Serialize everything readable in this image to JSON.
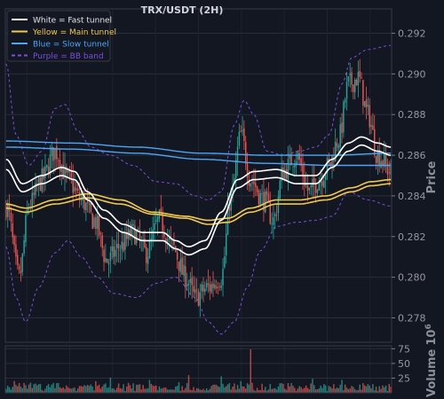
{
  "chart_data": {
    "type": "candlestick",
    "title": "TRX/USDT (2H)",
    "price_axis": {
      "label": "Price",
      "position": "right",
      "ylim": [
        0.2768,
        0.2932
      ],
      "ticks": [
        0.278,
        0.28,
        0.282,
        0.284,
        0.286,
        0.288,
        0.29,
        0.292
      ],
      "tick_labels": [
        "0.278",
        "0.280",
        "0.282",
        "0.284",
        "0.286",
        "0.288",
        "0.290",
        "0.292"
      ]
    },
    "volume_axis": {
      "label": "Volume",
      "multiplier": "10",
      "exponent": "6",
      "ylim": [
        0,
        80
      ],
      "ticks": [
        25,
        50,
        75
      ],
      "tick_labels": [
        "25",
        "50",
        "75"
      ]
    },
    "grid": true,
    "legend": {
      "placement": "top-left",
      "entries": [
        {
          "label": "White = Fast tunnel",
          "color": "#ffffff",
          "style": "solid"
        },
        {
          "label": "Yellow = Main tunnel",
          "color": "#f2c94c",
          "style": "solid"
        },
        {
          "label": "Blue = Slow tunnel",
          "color": "#4da6f5",
          "style": "solid"
        },
        {
          "label": "Purple = BB band",
          "color": "#7b4fe0",
          "style": "dashed"
        }
      ]
    },
    "colors": {
      "up": "#26a69a",
      "down": "#ef5350",
      "bb": "#7b4fe0",
      "fast": "#ffffff",
      "main": "#f2c94c",
      "slow": "#4da6f5"
    },
    "close_anchors": [
      [
        0,
        0.2835
      ],
      [
        8,
        0.28
      ],
      [
        14,
        0.2835
      ],
      [
        22,
        0.2848
      ],
      [
        30,
        0.2862
      ],
      [
        38,
        0.2848
      ],
      [
        46,
        0.2838
      ],
      [
        54,
        0.2828
      ],
      [
        62,
        0.2808
      ],
      [
        70,
        0.2815
      ],
      [
        78,
        0.2822
      ],
      [
        86,
        0.2812
      ],
      [
        94,
        0.2828
      ],
      [
        102,
        0.2815
      ],
      [
        110,
        0.28
      ],
      [
        116,
        0.279
      ],
      [
        124,
        0.2795
      ],
      [
        132,
        0.28
      ],
      [
        138,
        0.284
      ],
      [
        144,
        0.287
      ],
      [
        150,
        0.2848
      ],
      [
        158,
        0.2838
      ],
      [
        164,
        0.2828
      ],
      [
        170,
        0.2852
      ],
      [
        178,
        0.286
      ],
      [
        186,
        0.2842
      ],
      [
        192,
        0.2848
      ],
      [
        198,
        0.2855
      ],
      [
        204,
        0.2868
      ],
      [
        210,
        0.2895
      ],
      [
        216,
        0.2898
      ],
      [
        222,
        0.288
      ],
      [
        228,
        0.286
      ],
      [
        236,
        0.2852
      ]
    ],
    "fast_tunnel": {
      "upper": [
        [
          0,
          0.2858
        ],
        [
          10,
          0.2846
        ],
        [
          22,
          0.285
        ],
        [
          34,
          0.2854
        ],
        [
          42,
          0.2852
        ],
        [
          50,
          0.2842
        ],
        [
          60,
          0.2833
        ],
        [
          72,
          0.2826
        ],
        [
          84,
          0.2822
        ],
        [
          96,
          0.2822
        ],
        [
          104,
          0.2818
        ],
        [
          112,
          0.2815
        ],
        [
          122,
          0.2818
        ],
        [
          132,
          0.2832
        ],
        [
          142,
          0.2848
        ],
        [
          152,
          0.2852
        ],
        [
          166,
          0.2853
        ],
        [
          178,
          0.285
        ],
        [
          190,
          0.285
        ],
        [
          200,
          0.2858
        ],
        [
          210,
          0.2866
        ],
        [
          218,
          0.2869
        ],
        [
          228,
          0.2866
        ],
        [
          236,
          0.2864
        ]
      ],
      "lower": [
        [
          0,
          0.2853
        ],
        [
          10,
          0.2842
        ],
        [
          22,
          0.2846
        ],
        [
          34,
          0.285
        ],
        [
          42,
          0.2848
        ],
        [
          50,
          0.2838
        ],
        [
          60,
          0.2829
        ],
        [
          72,
          0.2822
        ],
        [
          84,
          0.2818
        ],
        [
          96,
          0.2818
        ],
        [
          104,
          0.2814
        ],
        [
          112,
          0.2811
        ],
        [
          122,
          0.2814
        ],
        [
          132,
          0.2828
        ],
        [
          142,
          0.2844
        ],
        [
          152,
          0.2848
        ],
        [
          166,
          0.2849
        ],
        [
          178,
          0.2846
        ],
        [
          190,
          0.2846
        ],
        [
          200,
          0.2854
        ],
        [
          210,
          0.2862
        ],
        [
          218,
          0.2865
        ],
        [
          228,
          0.2862
        ],
        [
          236,
          0.286
        ]
      ]
    },
    "main_tunnel": {
      "upper": [
        [
          0,
          0.2836
        ],
        [
          12,
          0.2834
        ],
        [
          30,
          0.2838
        ],
        [
          50,
          0.2841
        ],
        [
          70,
          0.2838
        ],
        [
          90,
          0.2832
        ],
        [
          110,
          0.283
        ],
        [
          124,
          0.2828
        ],
        [
          136,
          0.2829
        ],
        [
          150,
          0.2834
        ],
        [
          166,
          0.2838
        ],
        [
          180,
          0.2838
        ],
        [
          196,
          0.284
        ],
        [
          212,
          0.2844
        ],
        [
          224,
          0.2847
        ],
        [
          236,
          0.2848
        ]
      ],
      "lower": [
        [
          0,
          0.2834
        ],
        [
          12,
          0.2832
        ],
        [
          30,
          0.2836
        ],
        [
          50,
          0.2839
        ],
        [
          70,
          0.2836
        ],
        [
          90,
          0.2831
        ],
        [
          110,
          0.2829
        ],
        [
          124,
          0.2826
        ],
        [
          136,
          0.2827
        ],
        [
          150,
          0.2832
        ],
        [
          166,
          0.2836
        ],
        [
          180,
          0.2836
        ],
        [
          196,
          0.2838
        ],
        [
          212,
          0.2842
        ],
        [
          224,
          0.2845
        ],
        [
          236,
          0.2846
        ]
      ]
    },
    "slow_tunnel": {
      "upper": [
        [
          0,
          0.2867
        ],
        [
          40,
          0.2866
        ],
        [
          80,
          0.2864
        ],
        [
          120,
          0.2861
        ],
        [
          160,
          0.286
        ],
        [
          200,
          0.286
        ],
        [
          236,
          0.2861
        ]
      ],
      "lower": [
        [
          0,
          0.2864
        ],
        [
          40,
          0.2863
        ],
        [
          80,
          0.2861
        ],
        [
          120,
          0.2858
        ],
        [
          160,
          0.2856
        ],
        [
          200,
          0.2855
        ],
        [
          236,
          0.2855
        ]
      ]
    },
    "bb_band": {
      "upper": [
        [
          0,
          0.2905
        ],
        [
          6,
          0.287
        ],
        [
          14,
          0.2855
        ],
        [
          22,
          0.2862
        ],
        [
          30,
          0.2883
        ],
        [
          36,
          0.2885
        ],
        [
          44,
          0.2872
        ],
        [
          52,
          0.2864
        ],
        [
          64,
          0.286
        ],
        [
          78,
          0.2855
        ],
        [
          92,
          0.2847
        ],
        [
          104,
          0.2846
        ],
        [
          116,
          0.284
        ],
        [
          124,
          0.2838
        ],
        [
          132,
          0.2842
        ],
        [
          140,
          0.2875
        ],
        [
          146,
          0.2887
        ],
        [
          152,
          0.288
        ],
        [
          160,
          0.2862
        ],
        [
          170,
          0.286
        ],
        [
          180,
          0.2862
        ],
        [
          190,
          0.2864
        ],
        [
          198,
          0.287
        ],
        [
          206,
          0.2895
        ],
        [
          212,
          0.2908
        ],
        [
          222,
          0.2912
        ],
        [
          236,
          0.2914
        ]
      ],
      "lower": [
        [
          0,
          0.2815
        ],
        [
          6,
          0.279
        ],
        [
          12,
          0.2778
        ],
        [
          20,
          0.2795
        ],
        [
          30,
          0.2812
        ],
        [
          38,
          0.2818
        ],
        [
          46,
          0.281
        ],
        [
          56,
          0.28
        ],
        [
          66,
          0.2792
        ],
        [
          80,
          0.279
        ],
        [
          92,
          0.2797
        ],
        [
          104,
          0.28
        ],
        [
          116,
          0.279
        ],
        [
          124,
          0.2778
        ],
        [
          132,
          0.2772
        ],
        [
          140,
          0.2778
        ],
        [
          148,
          0.2795
        ],
        [
          156,
          0.2813
        ],
        [
          166,
          0.2825
        ],
        [
          178,
          0.2827
        ],
        [
          190,
          0.2828
        ],
        [
          200,
          0.283
        ],
        [
          210,
          0.2842
        ],
        [
          222,
          0.2838
        ],
        [
          236,
          0.2835
        ]
      ]
    },
    "volume_spikes": [
      [
        150,
        74
      ],
      [
        112,
        30
      ],
      [
        64,
        26
      ],
      [
        132,
        28
      ],
      [
        88,
        22
      ],
      [
        188,
        24
      ],
      [
        206,
        22
      ]
    ]
  }
}
